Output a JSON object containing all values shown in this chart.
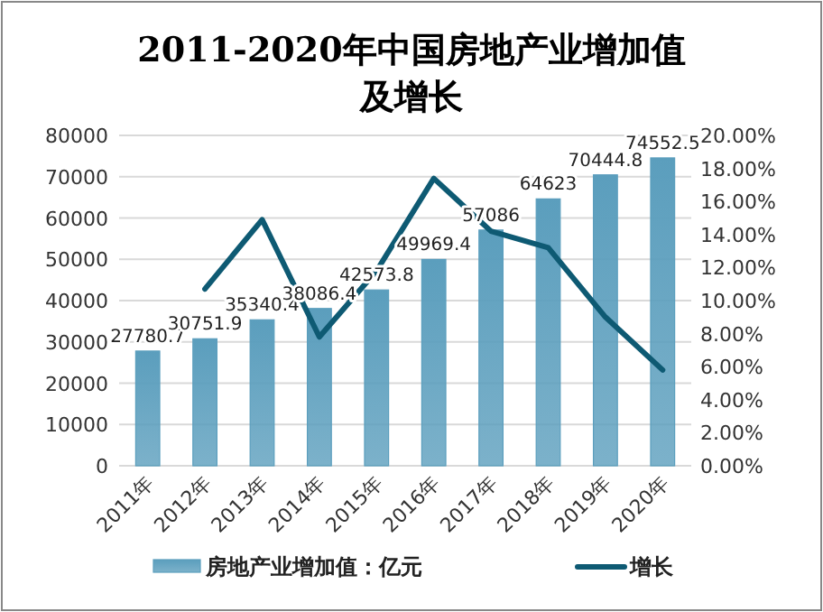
{
  "chart_data": {
    "type": "bar",
    "title": "2011-2020年中国房地产业增加值及增长",
    "categories": [
      "2011年",
      "2012年",
      "2013年",
      "2014年",
      "2015年",
      "2016年",
      "2017年",
      "2018年",
      "2019年",
      "2020年"
    ],
    "series": [
      {
        "name": "房地产业增加值：亿元",
        "color": "#5b9ebd",
        "values": [
          27780.7,
          30751.9,
          35340.4,
          38086.4,
          42573.8,
          49969.4,
          57086,
          64623,
          70444.8,
          74552.5
        ],
        "value_labels": [
          "27780.7",
          "30751.9",
          "35340.4",
          "38086.4",
          "42573.8",
          "49969.4",
          "57086",
          "64623",
          "70444.8",
          "74552.5"
        ]
      },
      {
        "name": "增长",
        "type": "line",
        "axis": "y2",
        "color": "#0e5a73",
        "values": [
          null,
          10.7,
          14.9,
          7.8,
          11.8,
          17.4,
          14.2,
          13.2,
          9.0,
          5.8
        ]
      }
    ],
    "ylim": [
      0,
      80000
    ],
    "yticks": [
      0,
      10000,
      20000,
      30000,
      40000,
      50000,
      60000,
      70000,
      80000
    ],
    "y2lim": [
      0,
      20
    ],
    "y2ticks": [
      {
        "value": 0,
        "label": "0.00%"
      },
      {
        "value": 2,
        "label": "2.00%"
      },
      {
        "value": 4,
        "label": "4.00%"
      },
      {
        "value": 6,
        "label": "6.00%"
      },
      {
        "value": 8,
        "label": "8.00%"
      },
      {
        "value": 10,
        "label": "10.00%"
      },
      {
        "value": 12,
        "label": "12.00%"
      },
      {
        "value": 14,
        "label": "14.00%"
      },
      {
        "value": 16,
        "label": "16.00%"
      },
      {
        "value": 18,
        "label": "18.00%"
      },
      {
        "value": 20,
        "label": "20.00%"
      }
    ],
    "grid": "y",
    "legend": "bottom",
    "marker": "none",
    "line_style": "solid"
  }
}
